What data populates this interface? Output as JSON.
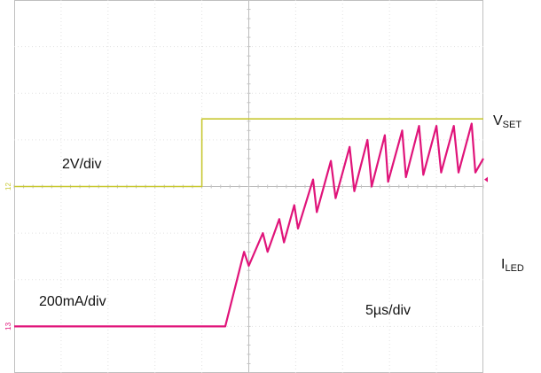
{
  "chart_data": {
    "type": "line",
    "title": "",
    "xlabel": "",
    "ylabel": "",
    "grid": true,
    "divisions": {
      "x": 10,
      "y": 8
    },
    "xlim_div": [
      0,
      10
    ],
    "ylim_div": [
      0,
      8
    ],
    "timebase": "5µs/div",
    "series": [
      {
        "name": "VSET",
        "label_main": "V",
        "label_sub": "SET",
        "scale": "2V/div",
        "channel_marker": "12",
        "color": "#c8c832",
        "ground_div": 4.0,
        "step_time_div": 4.0,
        "low_div": 4.0,
        "high_div": 5.45,
        "x": [
          0,
          4.0,
          4.0,
          10
        ],
        "y": [
          4.0,
          4.0,
          5.45,
          5.45
        ]
      },
      {
        "name": "ILED",
        "label_main": "I",
        "label_sub": "LED",
        "scale": "200mA/div",
        "channel_marker": "13",
        "color": "#e0147a",
        "ground_div": 1.0,
        "x": [
          0,
          4.5,
          4.9,
          5.0,
          5.3,
          5.4,
          5.65,
          5.75,
          5.97,
          6.05,
          6.37,
          6.45,
          6.75,
          6.85,
          7.15,
          7.25,
          7.53,
          7.62,
          7.9,
          7.97,
          8.27,
          8.35,
          8.63,
          8.72,
          9.0,
          9.1,
          9.37,
          9.47,
          9.75,
          9.83,
          10.0
        ],
        "y": [
          1.0,
          1.0,
          2.6,
          2.3,
          3.0,
          2.6,
          3.3,
          2.8,
          3.6,
          3.1,
          4.15,
          3.45,
          4.55,
          3.75,
          4.85,
          3.9,
          5.0,
          4.0,
          5.1,
          4.1,
          5.2,
          4.2,
          5.3,
          4.25,
          5.3,
          4.3,
          5.3,
          4.3,
          5.35,
          4.3,
          4.6
        ]
      }
    ]
  }
}
